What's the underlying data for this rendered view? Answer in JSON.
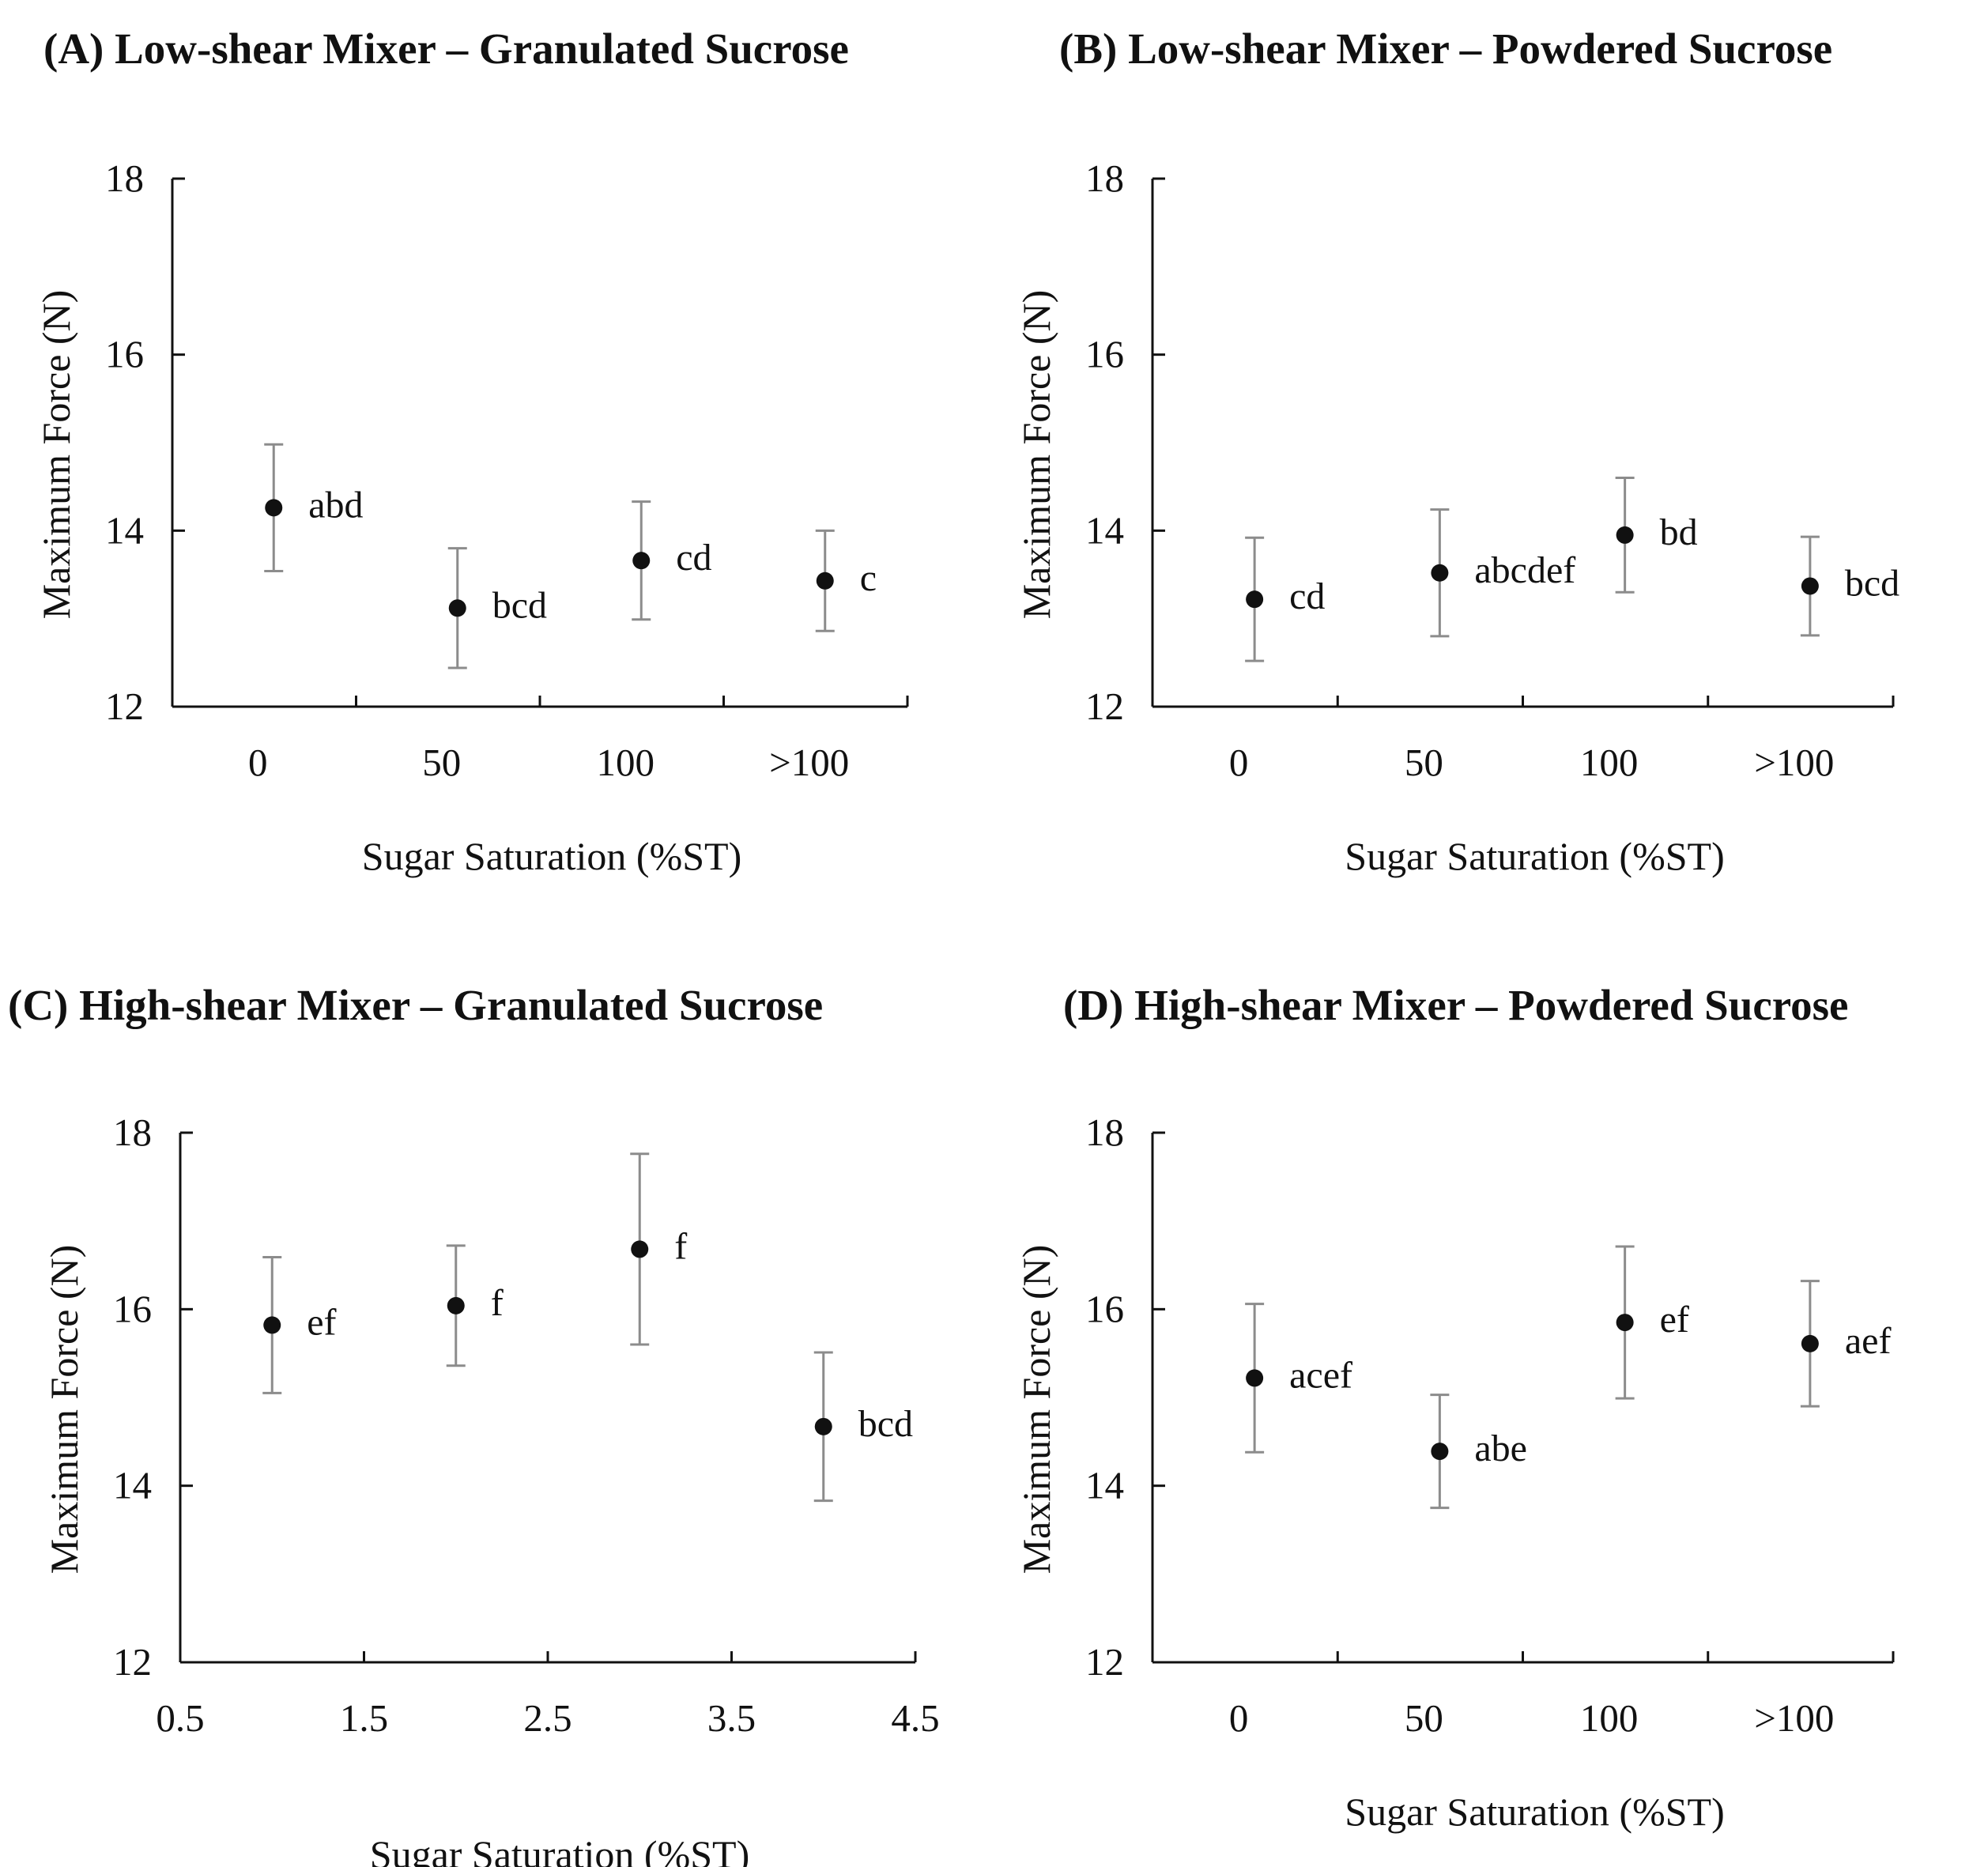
{
  "figure": {
    "colors": {
      "ink": "#111111",
      "errorbar": "#8c8c8c",
      "background": "#ffffff"
    }
  },
  "chart_data": [
    {
      "type": "scatter",
      "panel": "A",
      "title": "(A) Low-shear Mixer – Granulated Sucrose",
      "xlabel": "Sugar Saturation (%ST)",
      "ylabel": "Maximum Force (N)",
      "ylim": [
        12,
        18
      ],
      "yticks": [
        "12",
        "14",
        "16",
        "18"
      ],
      "xlim": [
        0.5,
        4.5
      ],
      "xticks": [],
      "categories": [
        "0",
        "50",
        "100",
        ">100"
      ],
      "series": [
        {
          "name": "Maximum force",
          "x": [
            1,
            2,
            3,
            4
          ],
          "values": [
            14.26,
            13.12,
            13.66,
            13.43
          ],
          "error": [
            0.72,
            0.68,
            0.67,
            0.57
          ],
          "labels": [
            "abd",
            "bcd",
            "cd",
            "c"
          ]
        }
      ]
    },
    {
      "type": "scatter",
      "panel": "B",
      "title": "(B) Low-shear Mixer – Powdered Sucrose",
      "xlabel": "Sugar Saturation (%ST)",
      "ylabel": "Maximum Force (N)",
      "ylim": [
        12,
        18
      ],
      "yticks": [
        "12",
        "14",
        "16",
        "18"
      ],
      "xlim": [
        0.5,
        4.5
      ],
      "xticks": [],
      "categories": [
        "0",
        "50",
        "100",
        ">100"
      ],
      "series": [
        {
          "name": "Maximum force",
          "x": [
            1,
            2,
            3,
            4
          ],
          "values": [
            13.22,
            13.52,
            13.95,
            13.37
          ],
          "error": [
            0.7,
            0.72,
            0.65,
            0.56
          ],
          "labels": [
            "cd",
            "abcdef",
            "bd",
            "bcd"
          ]
        }
      ]
    },
    {
      "type": "scatter",
      "panel": "C",
      "title": "(C) High-shear Mixer – Granulated Sucrose",
      "xlabel": "Sugar Saturation (%ST)",
      "ylabel": "Maximum Force (N)",
      "ylim": [
        12,
        18
      ],
      "yticks": [
        "12",
        "14",
        "16",
        "18"
      ],
      "xlim": [
        0.5,
        4.5
      ],
      "xticks": [
        "0.5",
        "1.5",
        "2.5",
        "3.5",
        "4.5"
      ],
      "categories": [],
      "series": [
        {
          "name": "Maximum force",
          "x": [
            1,
            2,
            3,
            4
          ],
          "values": [
            15.82,
            16.04,
            16.68,
            14.67
          ],
          "error": [
            0.77,
            0.68,
            1.08,
            0.84
          ],
          "labels": [
            "ef",
            "f",
            "f",
            "bcd"
          ]
        }
      ]
    },
    {
      "type": "scatter",
      "panel": "D",
      "title": "(D) High-shear Mixer – Powdered Sucrose",
      "xlabel": "Sugar Saturation (%ST)",
      "ylabel": "Maximum Force (N)",
      "ylim": [
        12,
        18
      ],
      "yticks": [
        "12",
        "14",
        "16",
        "18"
      ],
      "xlim": [
        0.5,
        4.5
      ],
      "xticks": [],
      "categories": [
        "0",
        "50",
        "100",
        ">100"
      ],
      "series": [
        {
          "name": "Maximum force",
          "x": [
            1,
            2,
            3,
            4
          ],
          "values": [
            15.22,
            14.39,
            15.85,
            15.61
          ],
          "error": [
            0.84,
            0.64,
            0.86,
            0.71
          ],
          "labels": [
            "acef",
            "abe",
            "ef",
            "aef"
          ]
        }
      ]
    }
  ]
}
